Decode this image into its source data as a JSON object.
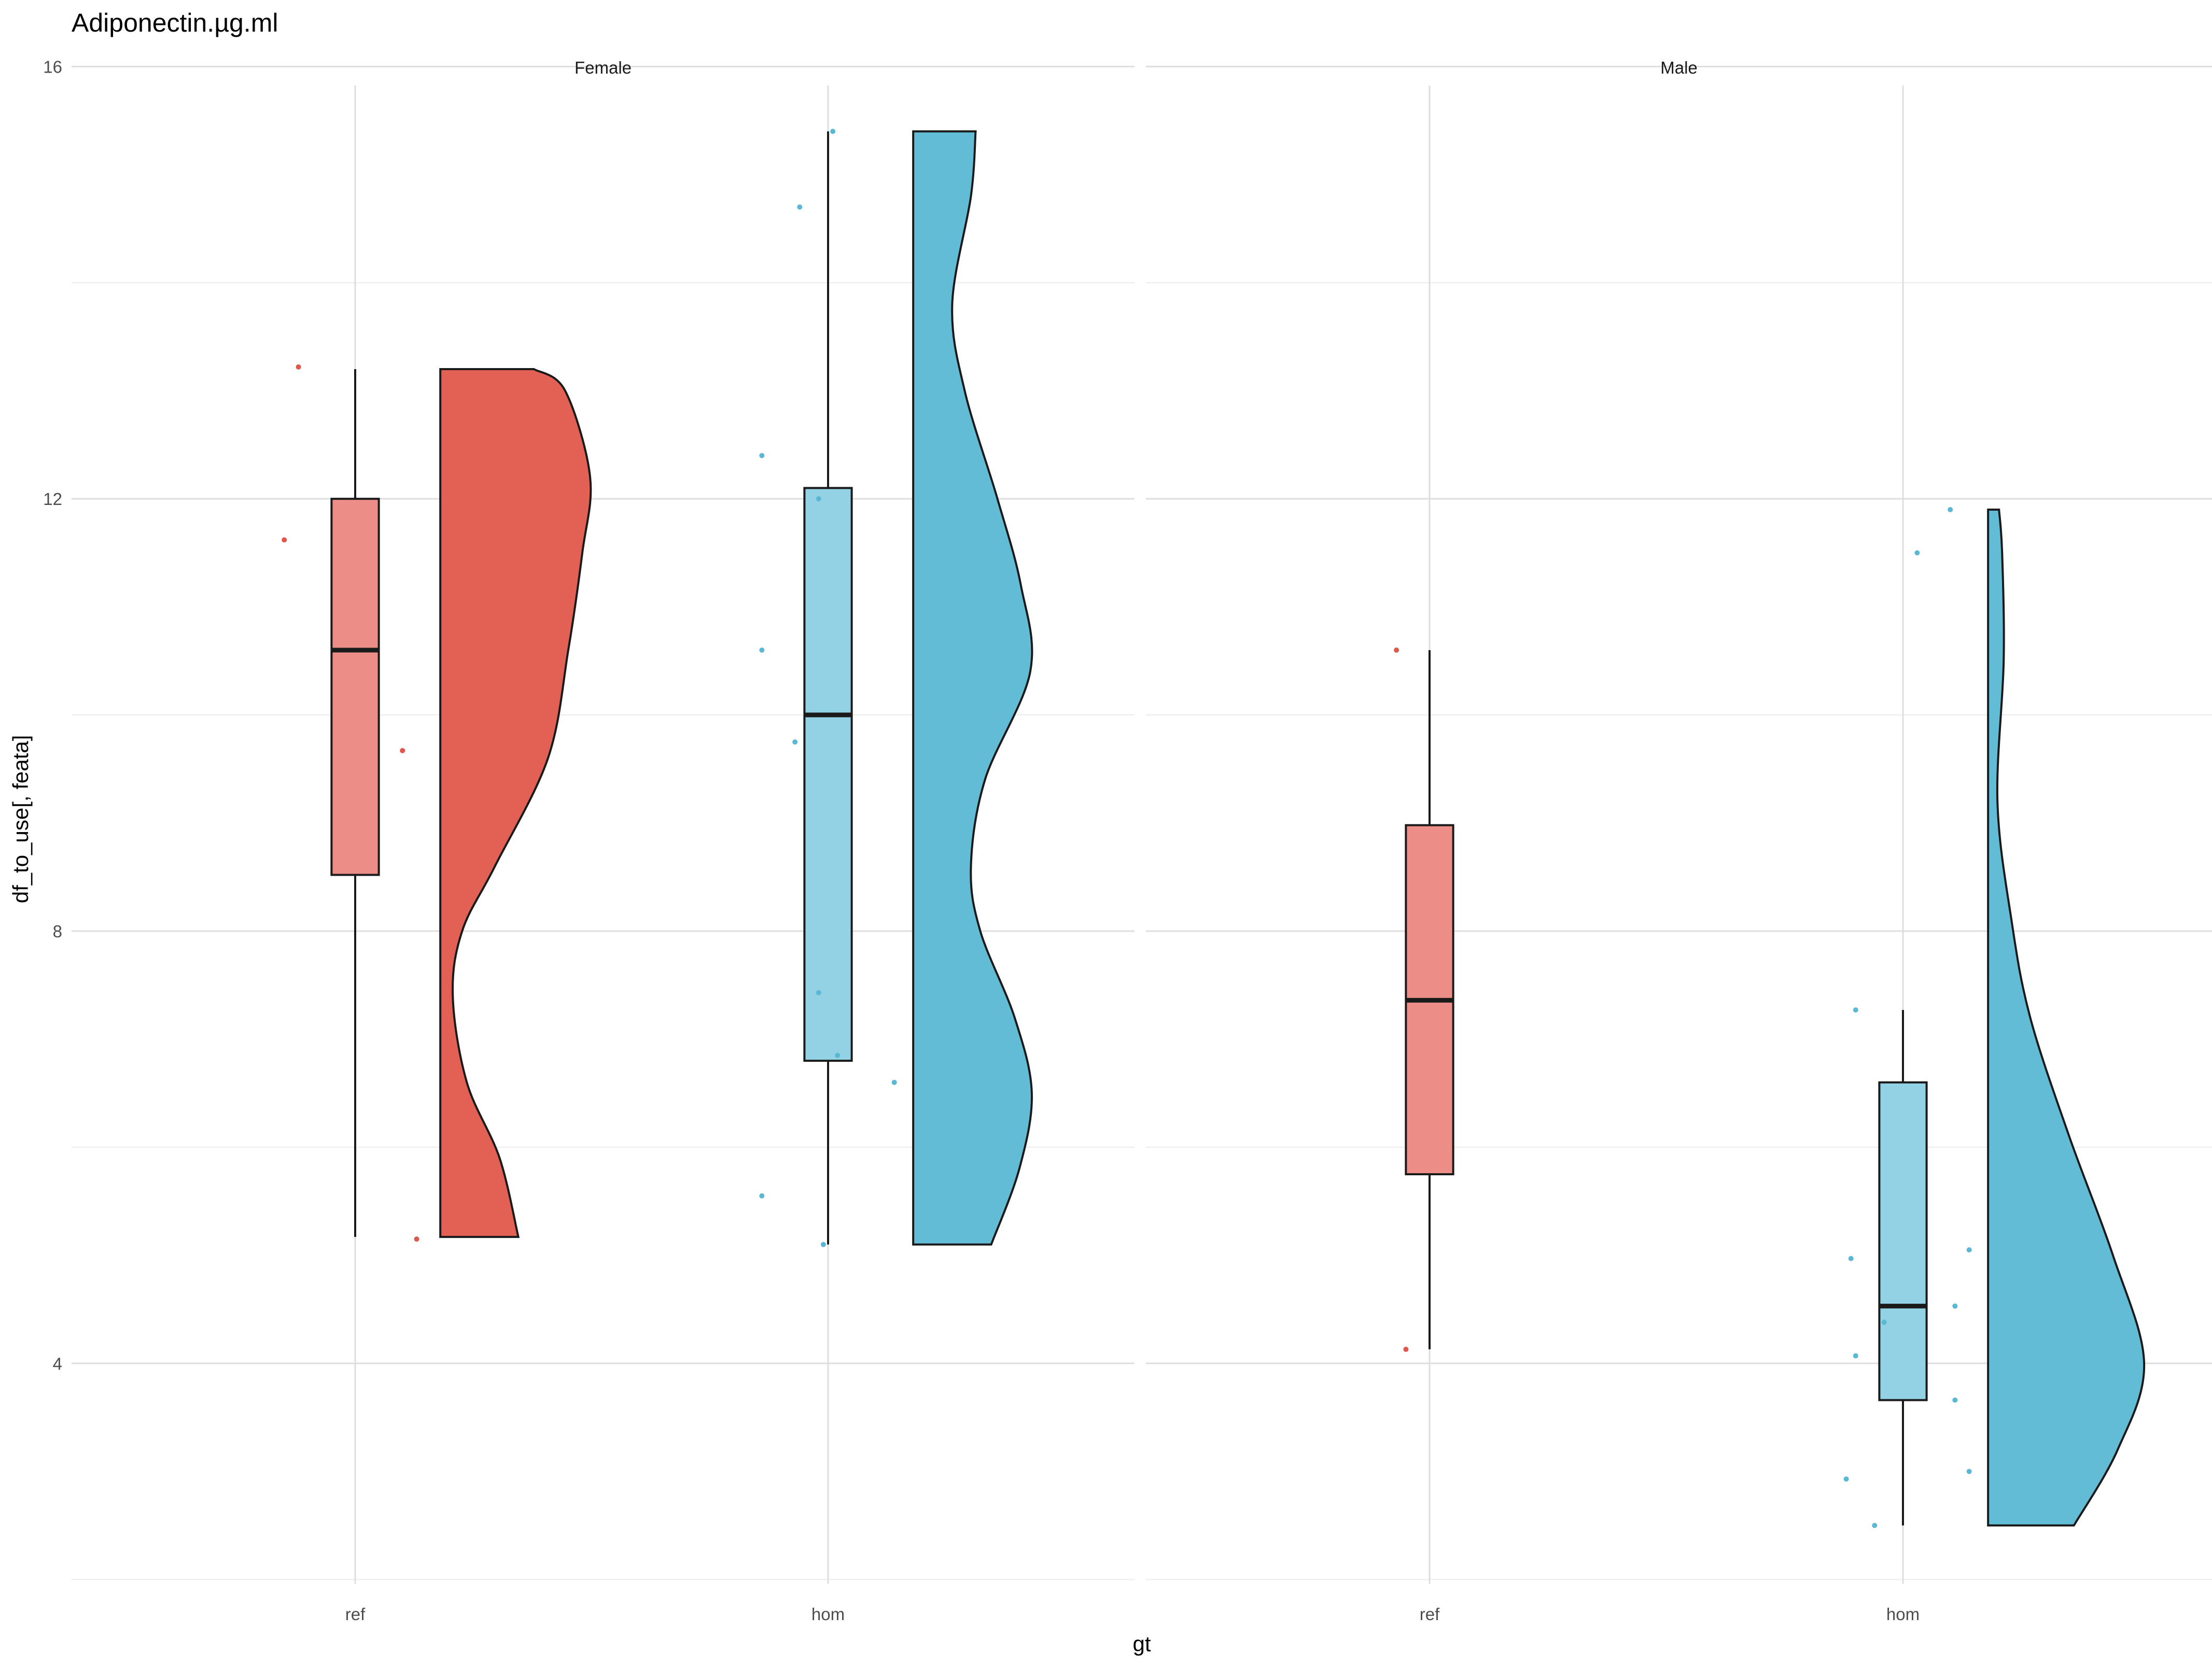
{
  "chart_data": {
    "type": "raincloud",
    "title": "Adiponectin.µg.ml",
    "xlabel": "gt",
    "ylabel": "df_to_use[, feata]",
    "ylim": [
      1.96,
      16.04
    ],
    "y_ticks": [
      4,
      8,
      12,
      16
    ],
    "y_ticks_labels": [
      "4",
      "8",
      "12",
      "16"
    ],
    "categories": [
      "ref",
      "hom"
    ],
    "grid": true,
    "colors": {
      "ref": "#e2574c",
      "hom": "#5bb8d4",
      "ref_box": "#ec8d87",
      "hom_box": "#92d2e4"
    },
    "panels": [
      {
        "name": "Female",
        "groups": [
          {
            "gt": "ref",
            "box": {
              "min": 5.17,
              "q1": 8.52,
              "median": 10.6,
              "q3": 12.0,
              "max": 13.2
            },
            "points": [
              13.22,
              11.62,
              9.67,
              5.15
            ],
            "point_offsets": [
              -0.12,
              -0.15,
              0.1,
              0.13
            ],
            "density": [
              [
                5.17,
                0.5
              ],
              [
                5.9,
                0.38
              ],
              [
                6.6,
                0.17
              ],
              [
                7.4,
                0.08
              ],
              [
                8.0,
                0.14
              ],
              [
                8.6,
                0.35
              ],
              [
                9.6,
                0.69
              ],
              [
                10.6,
                0.82
              ],
              [
                11.5,
                0.91
              ],
              [
                12.2,
                0.96
              ],
              [
                13.0,
                0.8
              ],
              [
                13.2,
                0.6
              ]
            ]
          },
          {
            "gt": "hom",
            "box": {
              "min": 5.1,
              "q1": 6.8,
              "median": 10.0,
              "q3": 12.1,
              "max": 15.4
            },
            "points": [
              15.4,
              14.7,
              12.4,
              12.0,
              10.6,
              9.75,
              7.43,
              6.85,
              6.6,
              5.55,
              5.1
            ],
            "point_offsets": [
              0.01,
              -0.06,
              -0.14,
              -0.02,
              -0.14,
              -0.07,
              -0.02,
              0.02,
              0.14,
              -0.14,
              -0.01
            ],
            "density": [
              [
                5.1,
                0.5
              ],
              [
                5.8,
                0.68
              ],
              [
                6.5,
                0.76
              ],
              [
                7.2,
                0.65
              ],
              [
                8.0,
                0.43
              ],
              [
                8.6,
                0.37
              ],
              [
                9.4,
                0.46
              ],
              [
                10.4,
                0.75
              ],
              [
                11.2,
                0.69
              ],
              [
                12.0,
                0.54
              ],
              [
                13.0,
                0.33
              ],
              [
                13.8,
                0.25
              ],
              [
                14.8,
                0.37
              ],
              [
                15.4,
                0.4
              ]
            ]
          }
        ]
      },
      {
        "name": "Male",
        "groups": [
          {
            "gt": "ref",
            "box": {
              "min": 4.13,
              "q1": 5.75,
              "median": 7.36,
              "q3": 8.98,
              "max": 10.6
            },
            "points": [
              10.6,
              4.13
            ],
            "point_offsets": [
              -0.07,
              -0.05
            ],
            "density": []
          },
          {
            "gt": "hom",
            "box": {
              "min": 2.5,
              "q1": 3.66,
              "median": 4.53,
              "q3": 6.6,
              "max": 7.27
            },
            "points": [
              11.9,
              11.5,
              7.27,
              5.05,
              4.97,
              4.53,
              4.38,
              4.07,
              3.66,
              3.0,
              2.93,
              2.5
            ],
            "point_offsets": [
              0.1,
              0.03,
              -0.1,
              0.14,
              -0.11,
              0.11,
              -0.04,
              -0.1,
              0.11,
              0.14,
              -0.12,
              -0.06
            ],
            "density": [
              [
                2.5,
                0.55
              ],
              [
                3.2,
                0.83
              ],
              [
                4.0,
                1.0
              ],
              [
                5.0,
                0.8
              ],
              [
                6.1,
                0.52
              ],
              [
                7.2,
                0.27
              ],
              [
                8.1,
                0.15
              ],
              [
                9.2,
                0.06
              ],
              [
                10.5,
                0.1
              ],
              [
                11.5,
                0.09
              ],
              [
                11.9,
                0.07
              ]
            ]
          }
        ]
      }
    ]
  }
}
